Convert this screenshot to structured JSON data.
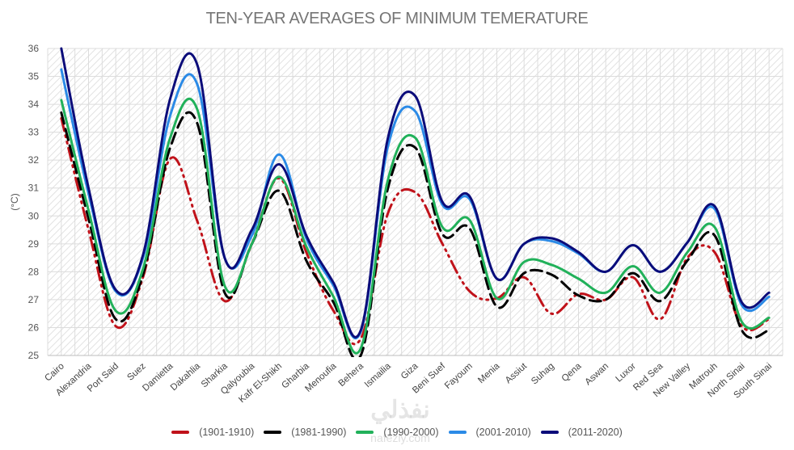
{
  "chart_data": {
    "type": "line",
    "title": "TEN-YEAR AVERAGES OF MINIMUM TEMERATURE",
    "xlabel": "",
    "ylabel": "(°C)",
    "ylim": [
      25,
      36
    ],
    "yticks": [
      25,
      26,
      27,
      28,
      29,
      30,
      31,
      32,
      33,
      34,
      35,
      36
    ],
    "grid": true,
    "legend_position": "bottom",
    "categories": [
      "Cairo",
      "Alexandria",
      "Port Said",
      "Suez",
      "Damietta",
      "Dakahlia",
      "Sharkia",
      "Qalyoubia",
      "Kafr El-Shikh",
      "Gharbia",
      "Menoufia",
      "Behera",
      "Ismailia",
      "Giza",
      "Beni Suef",
      "Fayoum",
      "Menia",
      "Assiut",
      "Suhag",
      "Qena",
      "Aswan",
      "Luxor",
      "Red Sea",
      "New Valley",
      "Matrouh",
      "North Sinai",
      "South Sinai"
    ],
    "series": [
      {
        "name": "(1901-1910)",
        "color": "#c0121a",
        "dash": "dashdotdot",
        "values": [
          33.5,
          29.5,
          26.05,
          27.8,
          32.05,
          29.8,
          26.95,
          29.0,
          31.35,
          28.7,
          26.6,
          25.6,
          30.1,
          30.85,
          29.0,
          27.3,
          27.05,
          27.8,
          26.5,
          27.2,
          27.0,
          27.8,
          26.3,
          28.5,
          28.7,
          26.05,
          26.3
        ]
      },
      {
        "name": "(1981-1990)",
        "color": "#000000",
        "dash": "dash",
        "values": [
          33.7,
          29.9,
          26.3,
          27.9,
          32.45,
          33.3,
          27.25,
          29.0,
          30.9,
          28.4,
          26.9,
          25.0,
          31.0,
          32.45,
          29.35,
          29.55,
          26.75,
          27.95,
          27.9,
          27.15,
          27.0,
          27.95,
          26.95,
          28.4,
          29.3,
          25.9,
          25.9
        ]
      },
      {
        "name": "(1990-2000)",
        "color": "#21b15a",
        "dash": "solid",
        "values": [
          34.15,
          30.2,
          26.6,
          28.1,
          32.8,
          33.8,
          27.5,
          29.0,
          31.4,
          28.9,
          27.1,
          25.25,
          31.3,
          32.8,
          29.6,
          29.85,
          27.05,
          28.35,
          28.25,
          27.75,
          27.25,
          28.2,
          27.25,
          28.7,
          29.6,
          26.2,
          26.35
        ]
      },
      {
        "name": "(2001-2010)",
        "color": "#2b8ae6",
        "dash": "solid",
        "values": [
          35.25,
          30.8,
          27.3,
          28.5,
          33.6,
          34.7,
          28.5,
          29.3,
          32.2,
          29.2,
          27.5,
          25.85,
          32.5,
          33.75,
          30.4,
          30.6,
          27.75,
          29.0,
          29.1,
          28.65,
          28.0,
          28.95,
          28.0,
          29.05,
          30.25,
          26.8,
          27.1
        ]
      },
      {
        "name": "(2011-2020)",
        "color": "#0b0c7a",
        "dash": "solid",
        "values": [
          36.0,
          31.0,
          27.35,
          28.6,
          34.2,
          35.4,
          28.5,
          29.5,
          31.85,
          29.3,
          27.6,
          25.9,
          32.8,
          34.3,
          30.5,
          30.7,
          27.75,
          29.0,
          29.2,
          28.7,
          28.0,
          28.95,
          28.0,
          29.05,
          30.35,
          26.9,
          27.25
        ]
      }
    ]
  },
  "watermark": {
    "text": "نفذلي",
    "subtext": "nafezly.com"
  }
}
